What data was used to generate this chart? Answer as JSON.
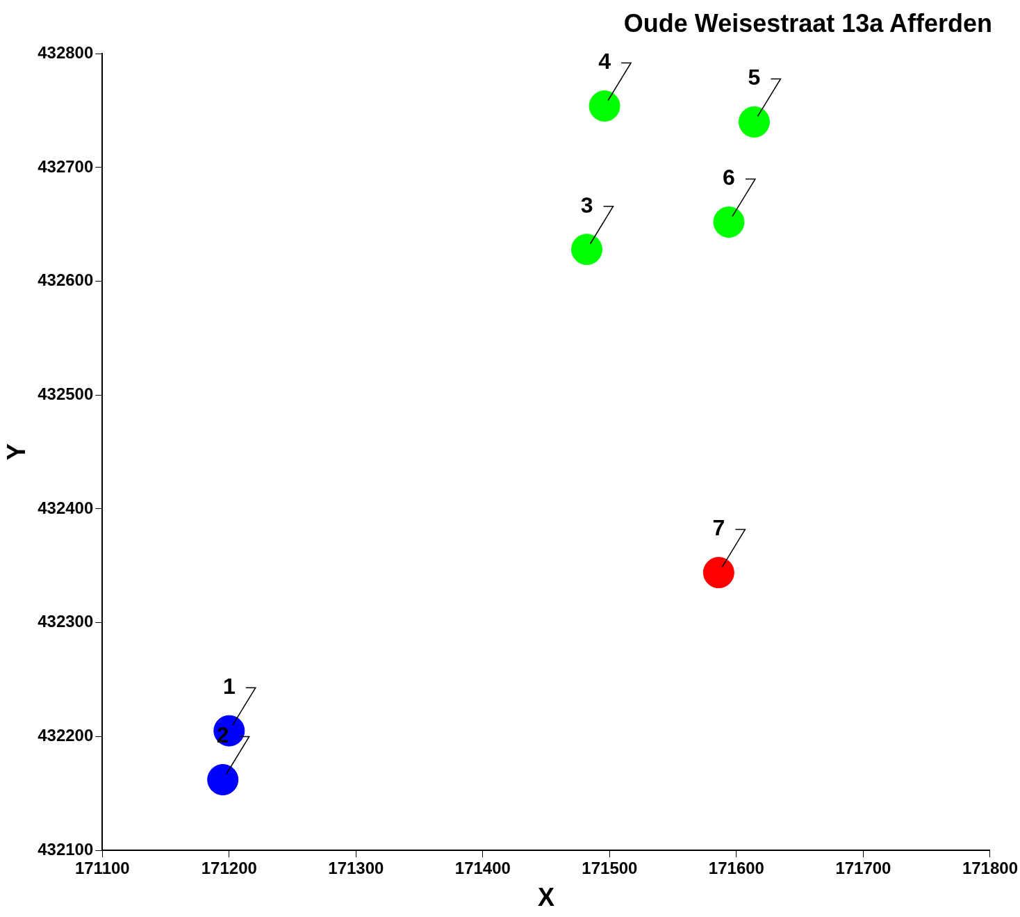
{
  "chart_data": {
    "type": "scatter",
    "title": "Oude Weisestraat 13a Afferden",
    "xlabel": "X",
    "ylabel": "Y",
    "xlim": [
      171100,
      171800
    ],
    "xticks": [
      171100,
      171200,
      171300,
      171400,
      171500,
      171600,
      171700,
      171800
    ],
    "ylim": [
      432100,
      432800
    ],
    "yticks": [
      432100,
      432200,
      432300,
      432400,
      432500,
      432600,
      432700,
      432800
    ],
    "grid": false,
    "legend": false,
    "marker": "circle",
    "series": [
      {
        "color": "#0000ff",
        "x": [
          171200,
          171195
        ],
        "values": [
          432205,
          432162
        ]
      },
      {
        "color": "#00ff00",
        "x": [
          171482,
          171496,
          171614,
          171594
        ],
        "values": [
          432628,
          432754,
          432740,
          432652
        ]
      },
      {
        "color": "#ff0000",
        "x": [
          171586
        ],
        "values": [
          432344
        ]
      }
    ],
    "annotations": [
      {
        "text": "1",
        "x": 171200,
        "y": 432205
      },
      {
        "text": "2",
        "x": 171195,
        "y": 432162
      },
      {
        "text": "3",
        "x": 171482,
        "y": 432628
      },
      {
        "text": "4",
        "x": 171496,
        "y": 432754
      },
      {
        "text": "5",
        "x": 171614,
        "y": 432740
      },
      {
        "text": "6",
        "x": 171594,
        "y": 432652
      },
      {
        "text": "7",
        "x": 171586,
        "y": 432344
      }
    ]
  }
}
